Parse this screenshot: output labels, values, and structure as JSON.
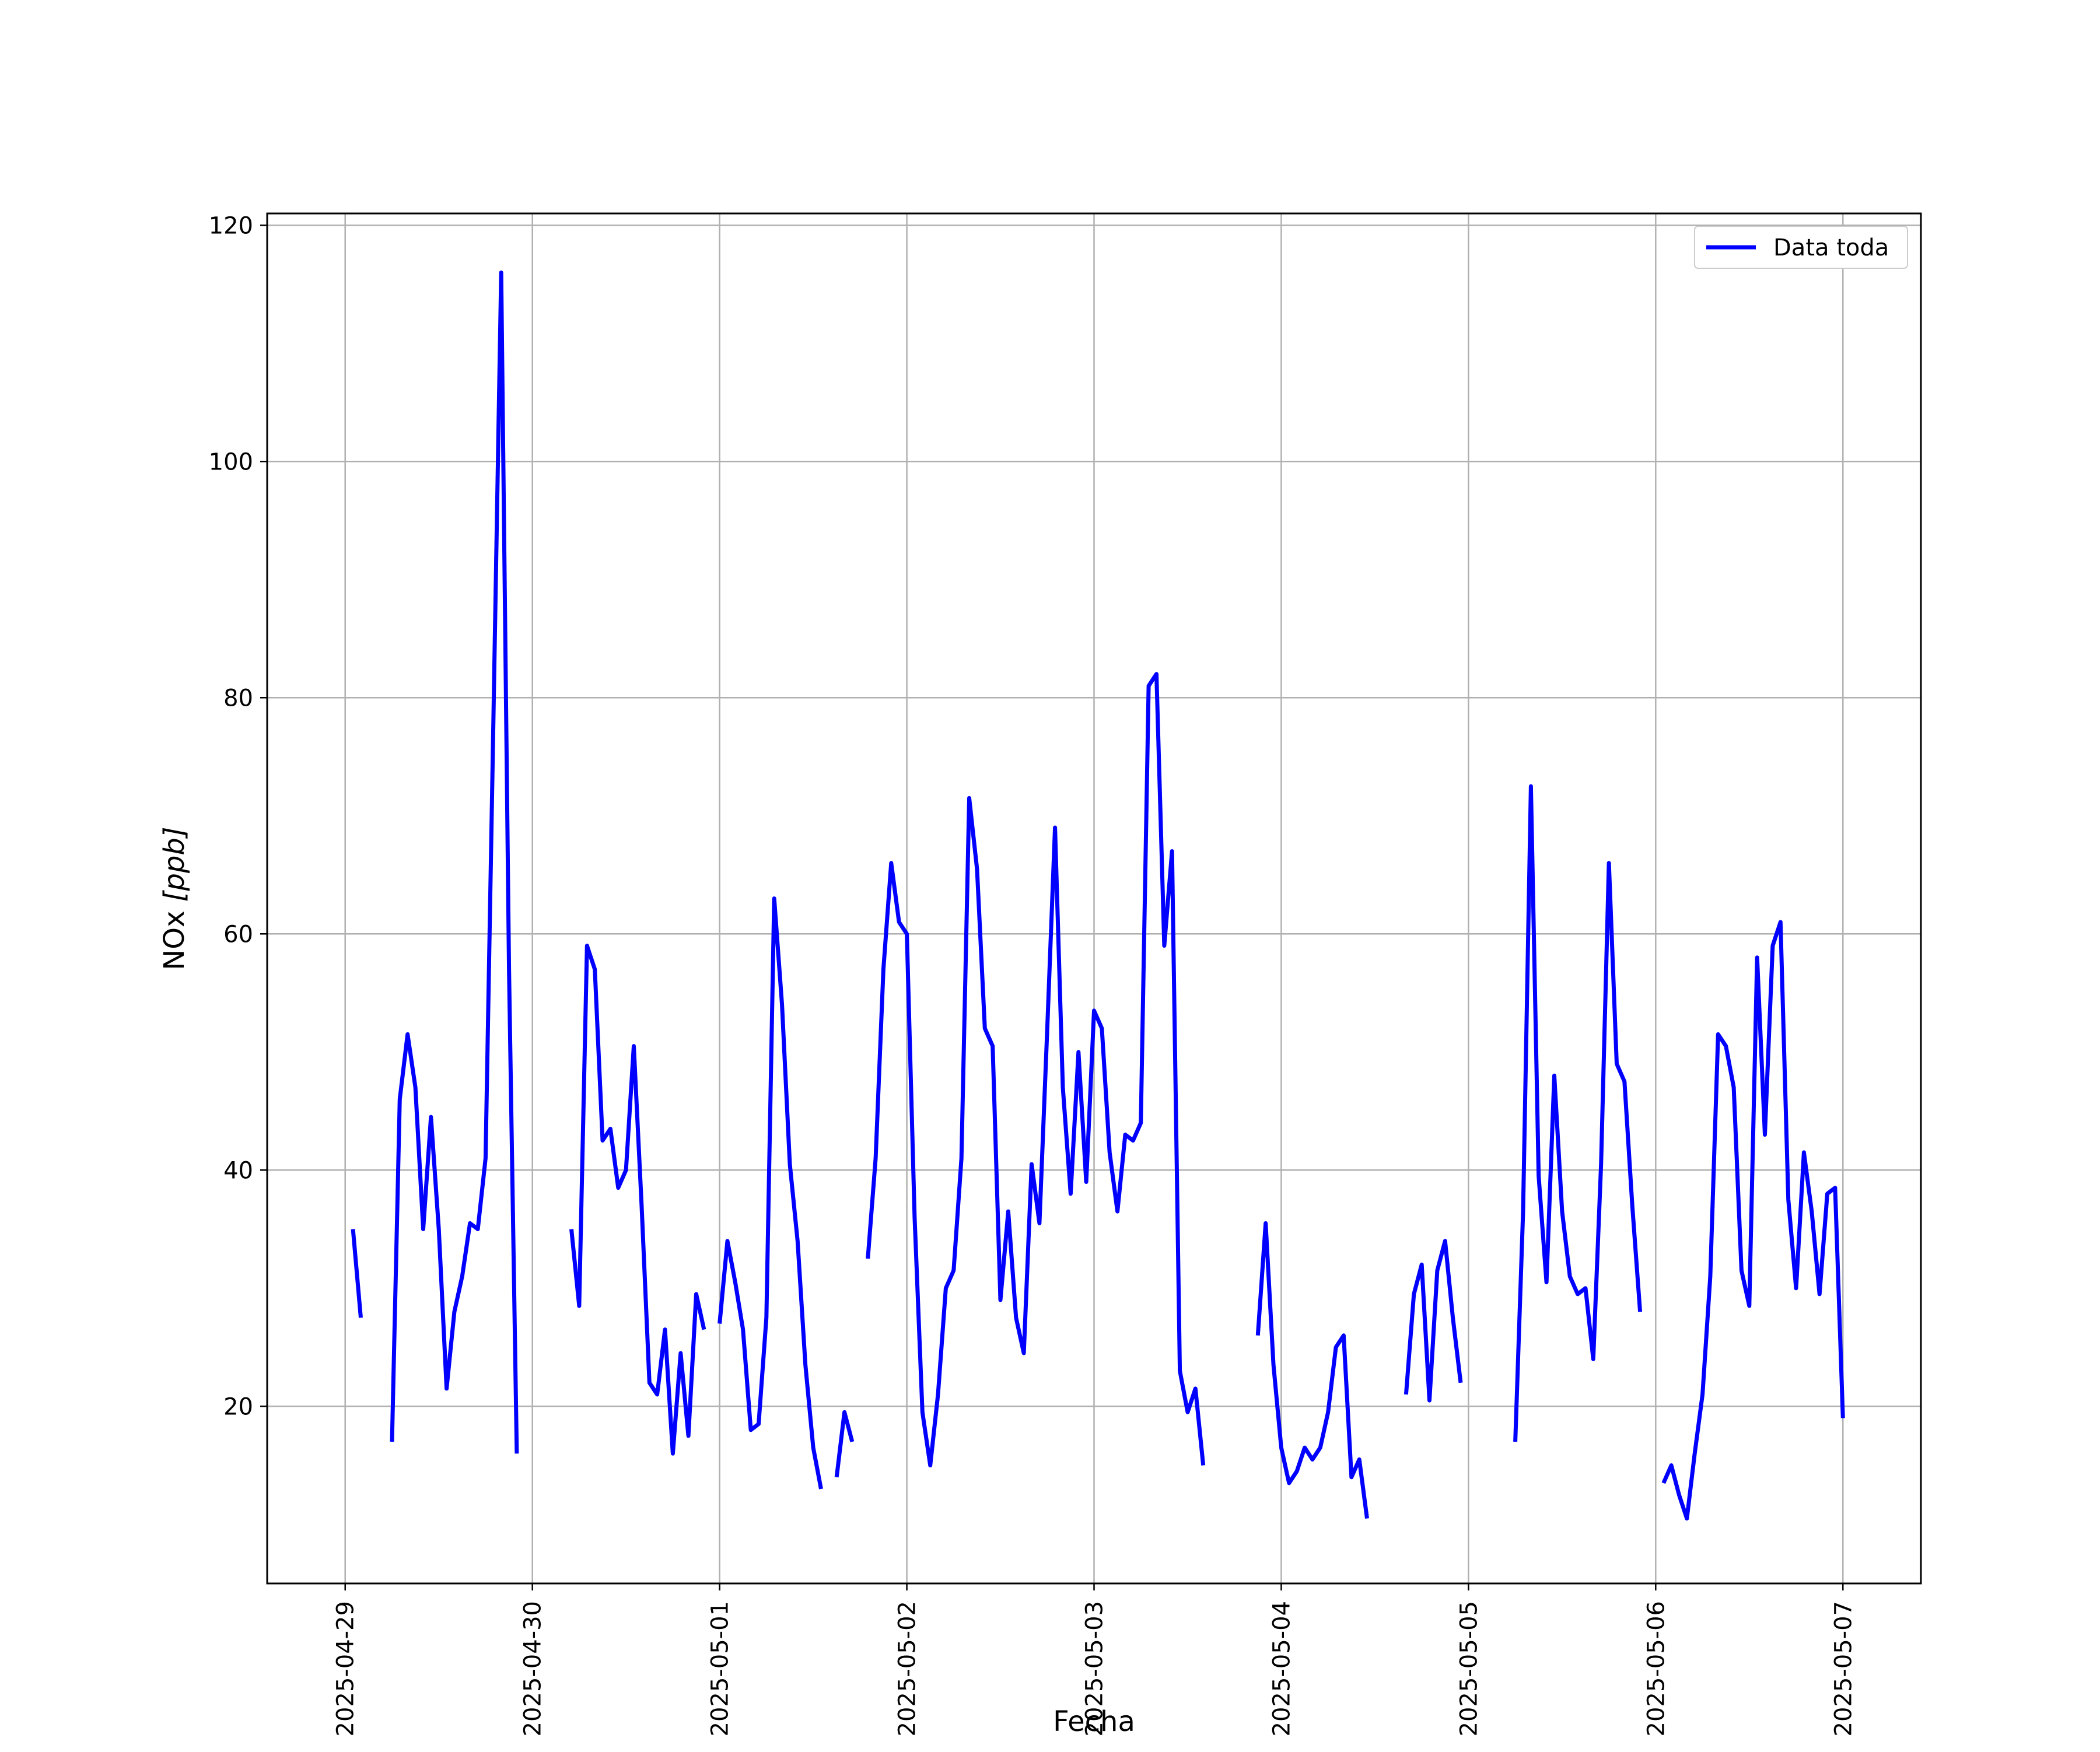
{
  "chart_data": {
    "type": "line",
    "title": "",
    "xlabel": "Fecha",
    "ylabel": "NOx [ppb]",
    "ylabel_parts": {
      "main": "NOx ",
      "unit": "[ppb]"
    },
    "xlim": [
      "2025-04-28 14:00",
      "2025-05-07 10:00"
    ],
    "ylim": [
      5,
      121
    ],
    "x_ticks": [
      "2025-04-29",
      "2025-04-30",
      "2025-05-01",
      "2025-05-02",
      "2025-05-03",
      "2025-05-04",
      "2025-05-05",
      "2025-05-06",
      "2025-05-07"
    ],
    "y_ticks": [
      20,
      40,
      60,
      80,
      100,
      120
    ],
    "grid": true,
    "legend_position": "top-right",
    "series": [
      {
        "name": "Data toda",
        "color": "#0000ff",
        "segments": [
          [
            [
              "2025-04-29 01:00",
              35.0
            ],
            [
              "2025-04-29 02:00",
              27.5
            ]
          ],
          [
            [
              "2025-04-29 06:00",
              17.0
            ],
            [
              "2025-04-29 07:00",
              46.0
            ],
            [
              "2025-04-29 08:00",
              51.5
            ],
            [
              "2025-04-29 09:00",
              47.0
            ],
            [
              "2025-04-29 10:00",
              35.0
            ],
            [
              "2025-04-29 11:00",
              44.5
            ],
            [
              "2025-04-29 12:00",
              35.0
            ],
            [
              "2025-04-29 13:00",
              21.5
            ],
            [
              "2025-04-29 14:00",
              28.0
            ],
            [
              "2025-04-29 15:00",
              31.0
            ],
            [
              "2025-04-29 16:00",
              35.5
            ],
            [
              "2025-04-29 17:00",
              35.0
            ],
            [
              "2025-04-29 18:00",
              41.0
            ],
            [
              "2025-04-29 19:00",
              78.0
            ],
            [
              "2025-04-29 20:00",
              116.0
            ],
            [
              "2025-04-29 21:00",
              57.0
            ],
            [
              "2025-04-29 22:00",
              16.0
            ]
          ],
          [
            [
              "2025-04-30 05:00",
              35.0
            ],
            [
              "2025-04-30 06:00",
              28.5
            ],
            [
              "2025-04-30 07:00",
              59.0
            ],
            [
              "2025-04-30 08:00",
              57.0
            ],
            [
              "2025-04-30 09:00",
              42.5
            ],
            [
              "2025-04-30 10:00",
              43.5
            ],
            [
              "2025-04-30 11:00",
              38.5
            ],
            [
              "2025-04-30 12:00",
              40.0
            ],
            [
              "2025-04-30 13:00",
              50.5
            ],
            [
              "2025-04-30 14:00",
              37.0
            ],
            [
              "2025-04-30 15:00",
              22.0
            ],
            [
              "2025-04-30 16:00",
              21.0
            ],
            [
              "2025-04-30 17:00",
              26.5
            ],
            [
              "2025-04-30 18:00",
              16.0
            ],
            [
              "2025-04-30 19:00",
              24.5
            ],
            [
              "2025-04-30 20:00",
              17.5
            ],
            [
              "2025-04-30 21:00",
              29.5
            ],
            [
              "2025-04-30 22:00",
              26.5
            ]
          ],
          [
            [
              "2025-05-01 00:00",
              27.0
            ],
            [
              "2025-05-01 01:00",
              34.0
            ],
            [
              "2025-05-01 02:00",
              30.5
            ],
            [
              "2025-05-01 03:00",
              26.5
            ],
            [
              "2025-05-01 04:00",
              18.0
            ],
            [
              "2025-05-01 05:00",
              18.5
            ],
            [
              "2025-05-01 06:00",
              27.5
            ],
            [
              "2025-05-01 07:00",
              63.0
            ],
            [
              "2025-05-01 08:00",
              54.0
            ],
            [
              "2025-05-01 09:00",
              40.5
            ],
            [
              "2025-05-01 10:00",
              34.0
            ],
            [
              "2025-05-01 11:00",
              23.5
            ],
            [
              "2025-05-01 12:00",
              16.5
            ],
            [
              "2025-05-01 13:00",
              13.0
            ]
          ],
          [
            [
              "2025-05-01 15:00",
              14.0
            ],
            [
              "2025-05-01 16:00",
              19.5
            ],
            [
              "2025-05-01 17:00",
              17.0
            ]
          ],
          [
            [
              "2025-05-01 19:00",
              32.5
            ],
            [
              "2025-05-01 20:00",
              41.0
            ],
            [
              "2025-05-01 21:00",
              57.0
            ],
            [
              "2025-05-01 22:00",
              66.0
            ],
            [
              "2025-05-01 23:00",
              61.0
            ],
            [
              "2025-05-02 00:00",
              60.0
            ],
            [
              "2025-05-02 01:00",
              36.0
            ],
            [
              "2025-05-02 02:00",
              19.5
            ],
            [
              "2025-05-02 03:00",
              15.0
            ],
            [
              "2025-05-02 04:00",
              21.0
            ],
            [
              "2025-05-02 05:00",
              30.0
            ],
            [
              "2025-05-02 06:00",
              31.5
            ],
            [
              "2025-05-02 07:00",
              41.0
            ],
            [
              "2025-05-02 08:00",
              71.5
            ],
            [
              "2025-05-02 09:00",
              65.5
            ],
            [
              "2025-05-02 10:00",
              52.0
            ],
            [
              "2025-05-02 11:00",
              50.5
            ],
            [
              "2025-05-02 12:00",
              29.0
            ],
            [
              "2025-05-02 13:00",
              36.5
            ],
            [
              "2025-05-02 14:00",
              27.5
            ],
            [
              "2025-05-02 15:00",
              24.5
            ],
            [
              "2025-05-02 16:00",
              40.5
            ],
            [
              "2025-05-02 17:00",
              35.5
            ],
            [
              "2025-05-02 18:00",
              52.0
            ],
            [
              "2025-05-02 19:00",
              69.0
            ],
            [
              "2025-05-02 20:00",
              47.0
            ],
            [
              "2025-05-02 21:00",
              38.0
            ],
            [
              "2025-05-02 22:00",
              50.0
            ],
            [
              "2025-05-02 23:00",
              39.0
            ],
            [
              "2025-05-03 00:00",
              53.5
            ],
            [
              "2025-05-03 01:00",
              52.0
            ],
            [
              "2025-05-03 02:00",
              41.5
            ],
            [
              "2025-05-03 03:00",
              36.5
            ],
            [
              "2025-05-03 04:00",
              43.0
            ],
            [
              "2025-05-03 05:00",
              42.5
            ],
            [
              "2025-05-03 06:00",
              44.0
            ],
            [
              "2025-05-03 07:00",
              81.0
            ],
            [
              "2025-05-03 08:00",
              82.0
            ],
            [
              "2025-05-03 09:00",
              59.0
            ],
            [
              "2025-05-03 10:00",
              67.0
            ],
            [
              "2025-05-03 11:00",
              23.0
            ],
            [
              "2025-05-03 12:00",
              19.5
            ],
            [
              "2025-05-03 13:00",
              21.5
            ],
            [
              "2025-05-03 14:00",
              15.0
            ]
          ],
          [
            [
              "2025-05-03 21:00",
              26.0
            ],
            [
              "2025-05-03 22:00",
              35.5
            ],
            [
              "2025-05-03 23:00",
              23.5
            ],
            [
              "2025-05-04 00:00",
              16.5
            ],
            [
              "2025-05-04 01:00",
              13.5
            ],
            [
              "2025-05-04 02:00",
              14.5
            ],
            [
              "2025-05-04 03:00",
              16.5
            ],
            [
              "2025-05-04 04:00",
              15.5
            ],
            [
              "2025-05-04 05:00",
              16.5
            ],
            [
              "2025-05-04 06:00",
              19.5
            ],
            [
              "2025-05-04 07:00",
              25.0
            ],
            [
              "2025-05-04 08:00",
              26.0
            ],
            [
              "2025-05-04 09:00",
              14.0
            ],
            [
              "2025-05-04 10:00",
              15.5
            ],
            [
              "2025-05-04 11:00",
              10.5
            ]
          ],
          [
            [
              "2025-05-04 16:00",
              21.0
            ],
            [
              "2025-05-04 17:00",
              29.5
            ],
            [
              "2025-05-04 18:00",
              32.0
            ],
            [
              "2025-05-04 19:00",
              20.5
            ],
            [
              "2025-05-04 20:00",
              31.5
            ],
            [
              "2025-05-04 21:00",
              34.0
            ],
            [
              "2025-05-04 22:00",
              27.5
            ],
            [
              "2025-05-04 23:00",
              22.0
            ]
          ],
          [
            [
              "2025-05-05 06:00",
              17.0
            ],
            [
              "2025-05-05 07:00",
              36.5
            ],
            [
              "2025-05-05 08:00",
              72.5
            ],
            [
              "2025-05-05 09:00",
              39.5
            ],
            [
              "2025-05-05 10:00",
              30.5
            ],
            [
              "2025-05-05 11:00",
              48.0
            ],
            [
              "2025-05-05 12:00",
              36.5
            ],
            [
              "2025-05-05 13:00",
              31.0
            ],
            [
              "2025-05-05 14:00",
              29.5
            ],
            [
              "2025-05-05 15:00",
              30.0
            ],
            [
              "2025-05-05 16:00",
              24.0
            ],
            [
              "2025-05-05 17:00",
              40.5
            ],
            [
              "2025-05-05 18:00",
              66.0
            ],
            [
              "2025-05-05 19:00",
              49.0
            ],
            [
              "2025-05-05 20:00",
              47.5
            ],
            [
              "2025-05-05 21:00",
              37.0
            ],
            [
              "2025-05-05 22:00",
              28.0
            ]
          ],
          [
            [
              "2025-05-06 01:00",
              13.5
            ],
            [
              "2025-05-06 02:00",
              15.0
            ],
            [
              "2025-05-06 03:00",
              12.5
            ],
            [
              "2025-05-06 04:00",
              10.5
            ],
            [
              "2025-05-06 05:00",
              16.0
            ],
            [
              "2025-05-06 06:00",
              21.0
            ],
            [
              "2025-05-06 07:00",
              31.0
            ],
            [
              "2025-05-06 08:00",
              51.5
            ],
            [
              "2025-05-06 09:00",
              50.5
            ],
            [
              "2025-05-06 10:00",
              47.0
            ],
            [
              "2025-05-06 11:00",
              31.5
            ],
            [
              "2025-05-06 12:00",
              28.5
            ],
            [
              "2025-05-06 13:00",
              58.0
            ],
            [
              "2025-05-06 14:00",
              43.0
            ],
            [
              "2025-05-06 15:00",
              59.0
            ],
            [
              "2025-05-06 16:00",
              61.0
            ],
            [
              "2025-05-06 17:00",
              37.5
            ],
            [
              "2025-05-06 18:00",
              30.0
            ],
            [
              "2025-05-06 19:00",
              41.5
            ],
            [
              "2025-05-06 20:00",
              36.5
            ],
            [
              "2025-05-06 21:00",
              29.5
            ],
            [
              "2025-05-06 22:00",
              38.0
            ],
            [
              "2025-05-06 23:00",
              38.5
            ],
            [
              "2025-05-07 00:00",
              19.0
            ]
          ]
        ]
      }
    ]
  }
}
